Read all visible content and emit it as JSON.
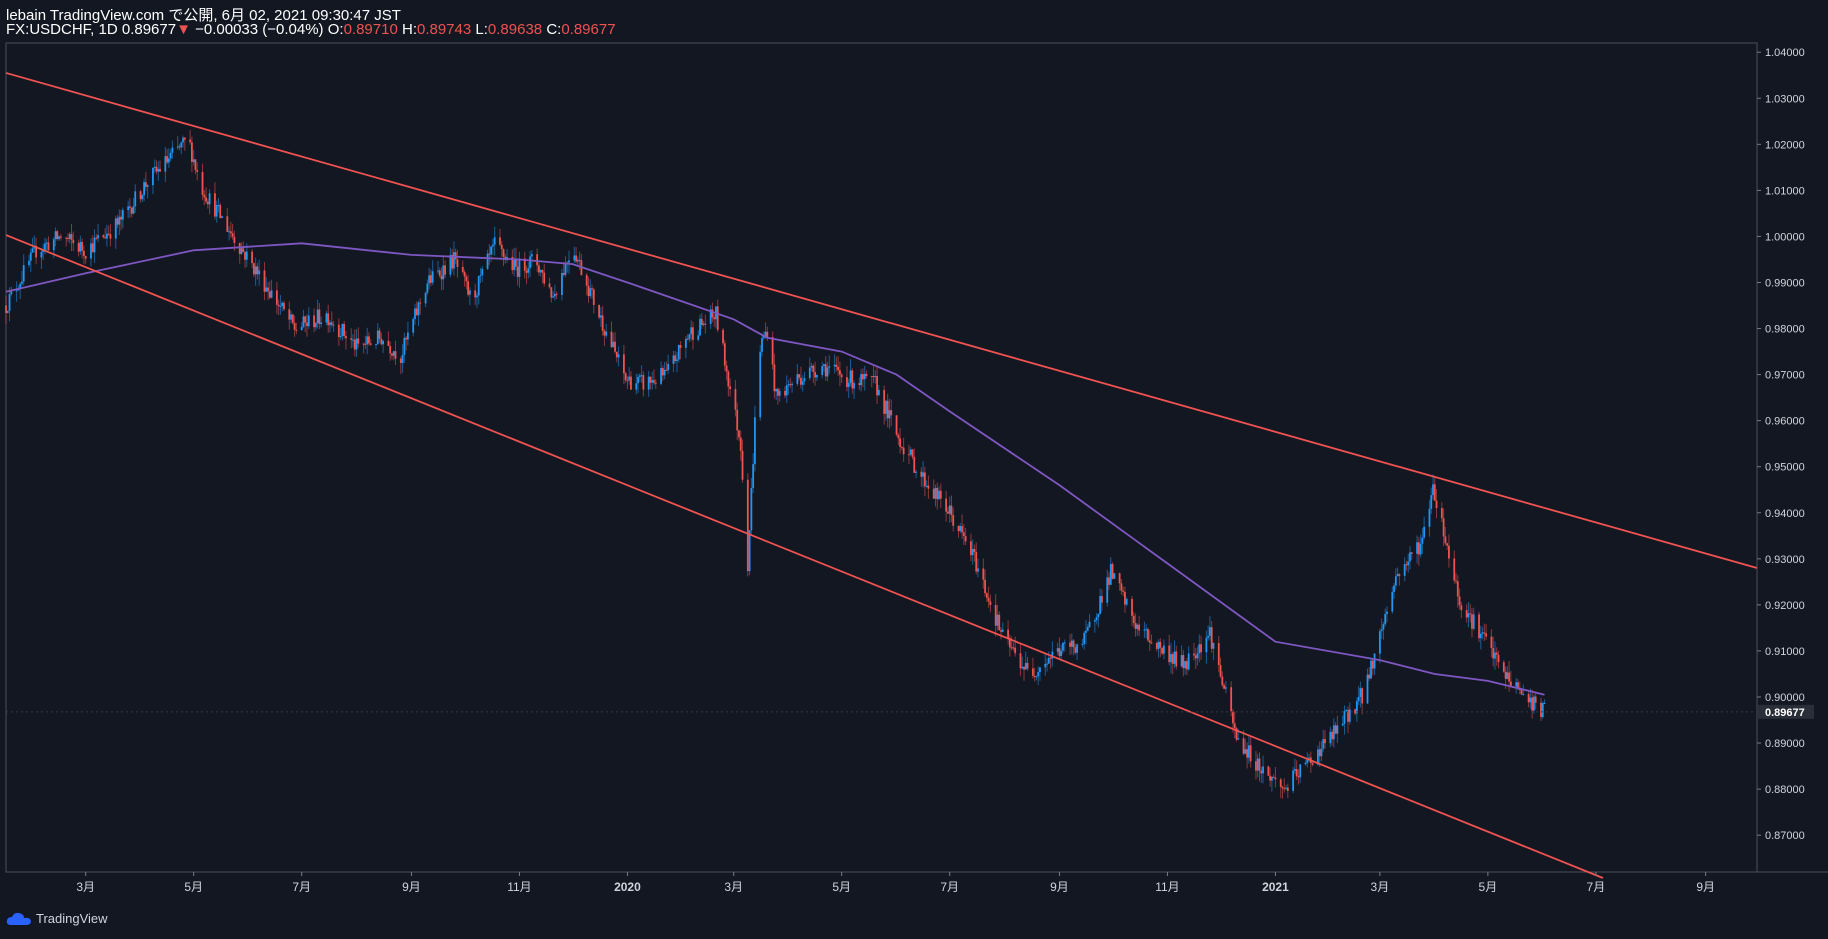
{
  "header": {
    "line1": "lebain TradingView.com で公開, 6月 02, 2021 09:30:47 JST",
    "symbol": "FX:USDCHF, 1D",
    "last": "0.89677",
    "change": "−0.00033 (−0.04%)",
    "o_label": "O:",
    "o": "0.89710",
    "h_label": "H:",
    "h": "0.89743",
    "l_label": "L:",
    "l": "0.89638",
    "c_label": "C:",
    "c": "0.89677"
  },
  "footer": {
    "brand": "TradingView"
  },
  "colors": {
    "background": "#131722",
    "up": "#2196f3",
    "down": "#ef5350",
    "trendline": "#f05350",
    "moving_average": "#7e57c2",
    "axis_text": "#d1d4dc"
  },
  "chart_data": {
    "type": "candlestick",
    "symbol": "FX:USDCHF",
    "timeframe": "1D",
    "ylim": [
      0.862,
      1.042
    ],
    "y_ticks": [
      "1.04000",
      "1.03000",
      "1.02000",
      "1.01000",
      "1.00000",
      "0.99000",
      "0.98000",
      "0.97000",
      "0.96000",
      "0.95000",
      "0.94000",
      "0.93000",
      "0.92000",
      "0.91000",
      "0.90000",
      "0.89000",
      "0.88000",
      "0.87000"
    ],
    "x_ticks": [
      "3月",
      "5月",
      "7月",
      "9月",
      "11月",
      "2020",
      "3月",
      "5月",
      "7月",
      "9月",
      "11月",
      "2021",
      "3月",
      "5月",
      "7月",
      "9月"
    ],
    "x_range": [
      "2019-01-15",
      "2021-09-30"
    ],
    "x_tick_dates": [
      "2019-03-01",
      "2019-05-01",
      "2019-07-01",
      "2019-09-01",
      "2019-11-01",
      "2020-01-01",
      "2020-03-01",
      "2020-05-01",
      "2020-07-01",
      "2020-09-01",
      "2020-11-01",
      "2021-01-01",
      "2021-03-01",
      "2021-05-01",
      "2021-07-01",
      "2021-09-01"
    ],
    "price_label": "0.89677",
    "price_series": {
      "dates": [
        "2019-01-15",
        "2019-02-01",
        "2019-02-15",
        "2019-03-01",
        "2019-03-20",
        "2019-04-05",
        "2019-04-20",
        "2019-04-28",
        "2019-05-05",
        "2019-05-15",
        "2019-06-01",
        "2019-06-15",
        "2019-06-27",
        "2019-07-15",
        "2019-08-01",
        "2019-08-15",
        "2019-08-26",
        "2019-09-10",
        "2019-09-25",
        "2019-10-05",
        "2019-10-18",
        "2019-10-30",
        "2019-11-10",
        "2019-11-20",
        "2019-12-01",
        "2019-12-15",
        "2019-12-31",
        "2020-01-10",
        "2020-01-23",
        "2020-02-05",
        "2020-02-20",
        "2020-03-05",
        "2020-03-09",
        "2020-03-15",
        "2020-03-20",
        "2020-03-25",
        "2020-04-05",
        "2020-04-20",
        "2020-05-05",
        "2020-05-20",
        "2020-06-01",
        "2020-06-15",
        "2020-07-01",
        "2020-07-15",
        "2020-07-31",
        "2020-08-15",
        "2020-08-31",
        "2020-09-15",
        "2020-09-30",
        "2020-10-15",
        "2020-10-30",
        "2020-11-10",
        "2020-11-25",
        "2020-12-10",
        "2020-12-25",
        "2021-01-06",
        "2021-01-20",
        "2021-02-05",
        "2021-02-20",
        "2021-03-10",
        "2021-03-25",
        "2021-03-31",
        "2021-04-15",
        "2021-04-30",
        "2021-05-10",
        "2021-05-25",
        "2021-06-02"
      ],
      "close": [
        0.985,
        0.997,
        1.0,
        0.997,
        1.003,
        1.012,
        1.018,
        1.021,
        1.011,
        1.005,
        0.995,
        0.987,
        0.98,
        0.983,
        0.976,
        0.978,
        0.974,
        0.99,
        0.995,
        0.986,
        0.998,
        0.993,
        0.995,
        0.987,
        0.998,
        0.984,
        0.969,
        0.968,
        0.97,
        0.979,
        0.983,
        0.955,
        0.929,
        0.975,
        0.98,
        0.965,
        0.969,
        0.972,
        0.969,
        0.968,
        0.957,
        0.948,
        0.94,
        0.93,
        0.913,
        0.905,
        0.91,
        0.912,
        0.927,
        0.915,
        0.91,
        0.907,
        0.914,
        0.891,
        0.884,
        0.88,
        0.886,
        0.893,
        0.901,
        0.926,
        0.934,
        0.946,
        0.921,
        0.912,
        0.905,
        0.899,
        0.8968
      ]
    },
    "moving_average": {
      "dates": [
        "2019-01-15",
        "2019-03-01",
        "2019-05-01",
        "2019-07-01",
        "2019-09-01",
        "2019-11-01",
        "2019-12-01",
        "2020-01-01",
        "2020-03-01",
        "2020-03-20",
        "2020-05-01",
        "2020-06-01",
        "2020-07-01",
        "2020-09-01",
        "2020-11-01",
        "2021-01-01",
        "2021-03-01",
        "2021-04-01",
        "2021-05-01",
        "2021-06-02"
      ],
      "values": [
        0.988,
        0.992,
        0.997,
        0.9985,
        0.996,
        0.995,
        0.994,
        0.99,
        0.982,
        0.978,
        0.975,
        0.97,
        0.962,
        0.946,
        0.929,
        0.912,
        0.908,
        0.905,
        0.9035,
        0.9005
      ]
    },
    "trendlines": [
      {
        "from": [
          "2019-01-15",
          1.0355
        ],
        "to": [
          "2021-09-30",
          0.928
        ]
      },
      {
        "from": [
          "2019-01-15",
          1.0003
        ],
        "to": [
          "2021-07-05",
          0.8607
        ]
      }
    ]
  }
}
